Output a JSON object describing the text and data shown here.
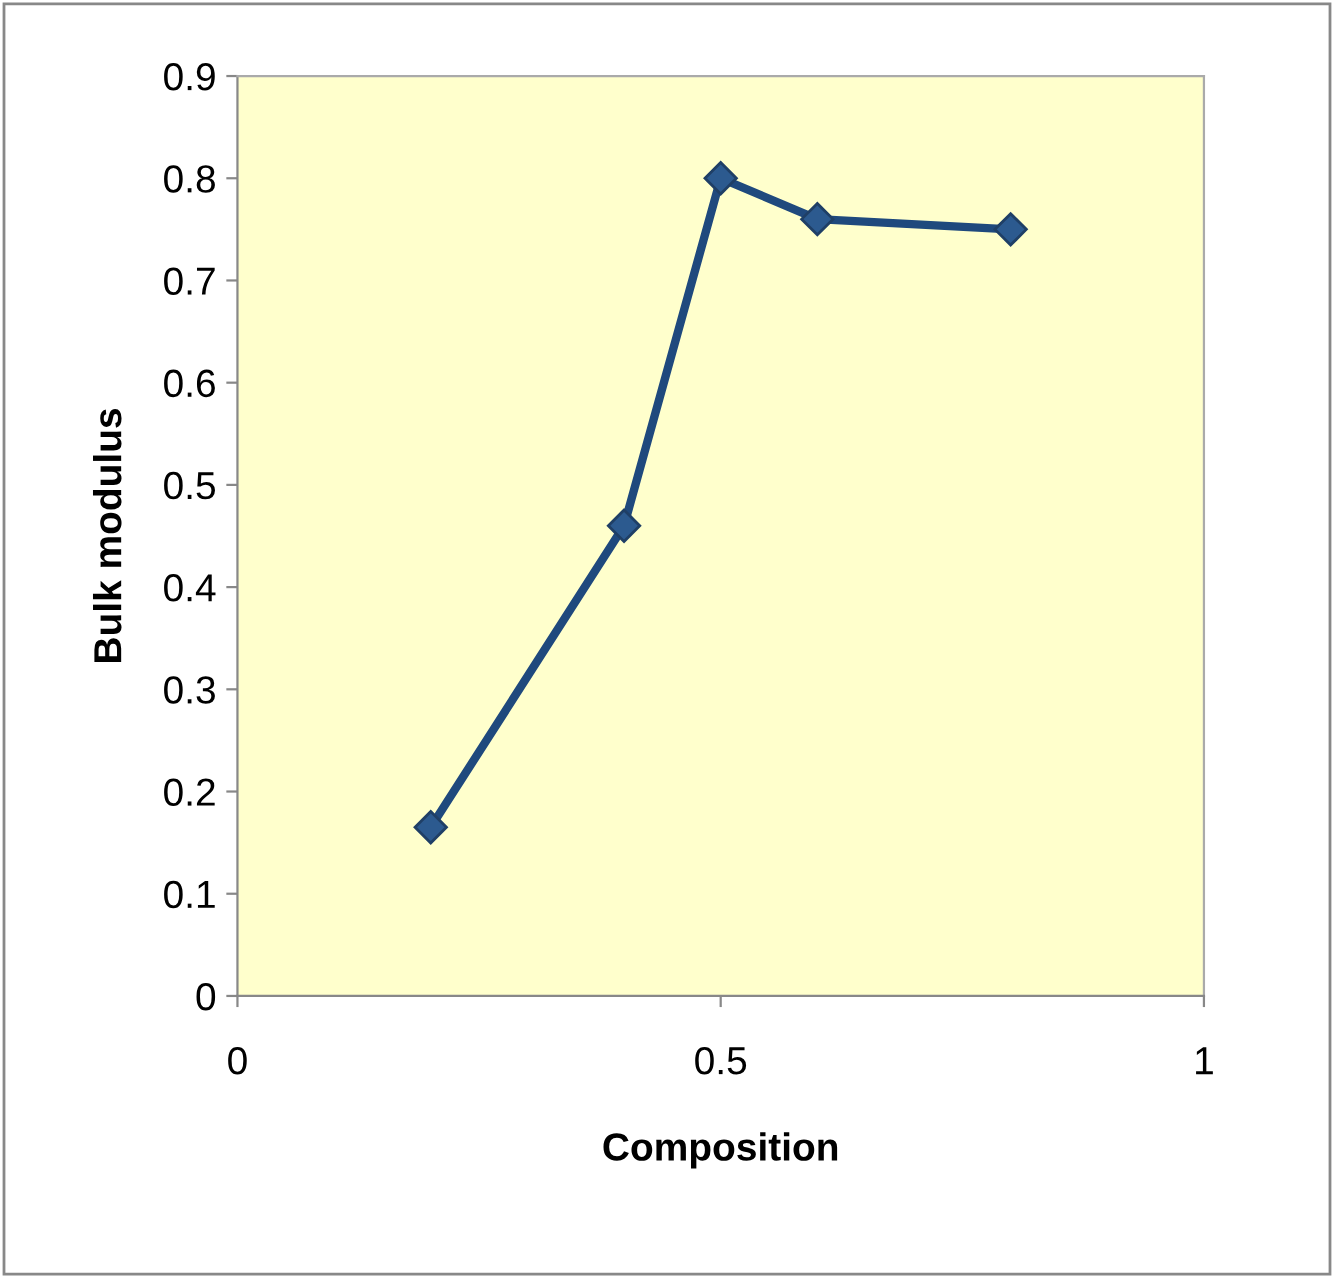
{
  "chart_data": {
    "type": "line",
    "xlabel": "Composition",
    "ylabel": "Bulk modulus",
    "x": [
      0.2,
      0.4,
      0.5,
      0.6,
      0.8
    ],
    "series": [
      {
        "color": "#1f497d",
        "values": [
          0.165,
          0.46,
          0.8,
          0.76,
          0.75
        ]
      }
    ],
    "xlim": [
      0,
      1
    ],
    "xticks": [
      0,
      0.5,
      1
    ],
    "ylim": [
      0,
      0.9
    ],
    "yticks": [
      0,
      0.1,
      0.2,
      0.3,
      0.4,
      0.5,
      0.6,
      0.7,
      0.8,
      0.9
    ],
    "marker": "diamond",
    "line_style": "solid",
    "grid": false,
    "legend": false
  }
}
